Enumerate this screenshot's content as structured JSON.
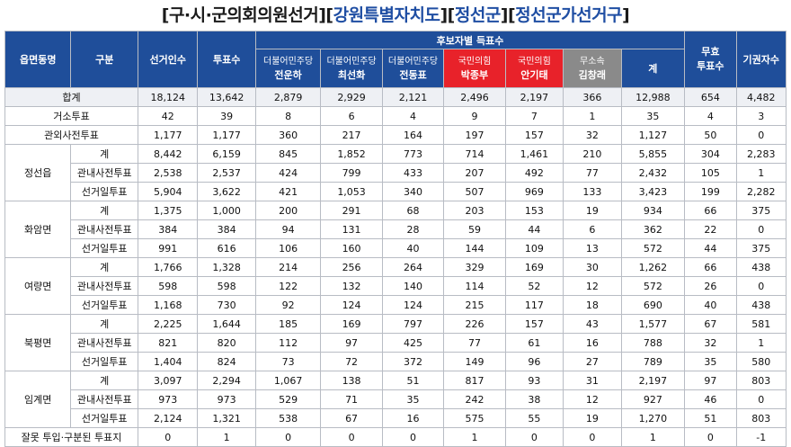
{
  "title": {
    "part1": "구·시·군의회의원선거",
    "part2": "강원특별자치도",
    "part3": "정선군",
    "part4": "정선군가선거구"
  },
  "header": {
    "district": "읍면동명",
    "category": "구분",
    "voters": "선거인수",
    "ballots": "투표수",
    "candidate_group": "후보자별 득표수",
    "total": "계",
    "invalid_line1": "무효",
    "invalid_line2": "투표수",
    "abstain": "기권자수",
    "candidates": [
      {
        "party": "더불어민주당",
        "name": "전운하",
        "color": "#1f4e9a"
      },
      {
        "party": "더불어민주당",
        "name": "최선화",
        "color": "#1f4e9a"
      },
      {
        "party": "더불어민주당",
        "name": "전동표",
        "color": "#1f4e9a"
      },
      {
        "party": "국민의힘",
        "name": "박종부",
        "color": "#e8222a"
      },
      {
        "party": "국민의힘",
        "name": "안기태",
        "color": "#e8222a"
      },
      {
        "party": "무소속",
        "name": "김창래",
        "color": "#8a8a8a"
      }
    ]
  },
  "rows": [
    {
      "district": "",
      "category": "합계",
      "v": [
        "18,124",
        "13,642",
        "2,879",
        "2,929",
        "2,121",
        "2,496",
        "2,197",
        "366",
        "12,988",
        "654",
        "4,482"
      ]
    },
    {
      "district": "",
      "category": "거소투표",
      "v": [
        "42",
        "39",
        "8",
        "6",
        "4",
        "9",
        "7",
        "1",
        "35",
        "4",
        "3"
      ]
    },
    {
      "district": "",
      "category": "관외사전투표",
      "v": [
        "1,177",
        "1,177",
        "360",
        "217",
        "164",
        "197",
        "157",
        "32",
        "1,127",
        "50",
        "0"
      ]
    },
    {
      "district": "정선읍",
      "category": "계",
      "v": [
        "8,442",
        "6,159",
        "845",
        "1,852",
        "773",
        "714",
        "1,461",
        "210",
        "5,855",
        "304",
        "2,283"
      ]
    },
    {
      "district": "",
      "category": "관내사전투표",
      "v": [
        "2,538",
        "2,537",
        "424",
        "799",
        "433",
        "207",
        "492",
        "77",
        "2,432",
        "105",
        "1"
      ]
    },
    {
      "district": "",
      "category": "선거일투표",
      "v": [
        "5,904",
        "3,622",
        "421",
        "1,053",
        "340",
        "507",
        "969",
        "133",
        "3,423",
        "199",
        "2,282"
      ]
    },
    {
      "district": "화암면",
      "category": "계",
      "v": [
        "1,375",
        "1,000",
        "200",
        "291",
        "68",
        "203",
        "153",
        "19",
        "934",
        "66",
        "375"
      ]
    },
    {
      "district": "",
      "category": "관내사전투표",
      "v": [
        "384",
        "384",
        "94",
        "131",
        "28",
        "59",
        "44",
        "6",
        "362",
        "22",
        "0"
      ]
    },
    {
      "district": "",
      "category": "선거일투표",
      "v": [
        "991",
        "616",
        "106",
        "160",
        "40",
        "144",
        "109",
        "13",
        "572",
        "44",
        "375"
      ]
    },
    {
      "district": "여량면",
      "category": "계",
      "v": [
        "1,766",
        "1,328",
        "214",
        "256",
        "264",
        "329",
        "169",
        "30",
        "1,262",
        "66",
        "438"
      ]
    },
    {
      "district": "",
      "category": "관내사전투표",
      "v": [
        "598",
        "598",
        "122",
        "132",
        "140",
        "114",
        "52",
        "12",
        "572",
        "26",
        "0"
      ]
    },
    {
      "district": "",
      "category": "선거일투표",
      "v": [
        "1,168",
        "730",
        "92",
        "124",
        "124",
        "215",
        "117",
        "18",
        "690",
        "40",
        "438"
      ]
    },
    {
      "district": "북평면",
      "category": "계",
      "v": [
        "2,225",
        "1,644",
        "185",
        "169",
        "797",
        "226",
        "157",
        "43",
        "1,577",
        "67",
        "581"
      ]
    },
    {
      "district": "",
      "category": "관내사전투표",
      "v": [
        "821",
        "820",
        "112",
        "97",
        "425",
        "77",
        "61",
        "16",
        "788",
        "32",
        "1"
      ]
    },
    {
      "district": "",
      "category": "선거일투표",
      "v": [
        "1,404",
        "824",
        "73",
        "72",
        "372",
        "149",
        "96",
        "27",
        "789",
        "35",
        "580"
      ]
    },
    {
      "district": "임계면",
      "category": "계",
      "v": [
        "3,097",
        "2,294",
        "1,067",
        "138",
        "51",
        "817",
        "93",
        "31",
        "2,197",
        "97",
        "803"
      ]
    },
    {
      "district": "",
      "category": "관내사전투표",
      "v": [
        "973",
        "973",
        "529",
        "71",
        "35",
        "242",
        "38",
        "12",
        "927",
        "46",
        "0"
      ]
    },
    {
      "district": "",
      "category": "선거일투표",
      "v": [
        "2,124",
        "1,321",
        "538",
        "67",
        "16",
        "575",
        "55",
        "19",
        "1,270",
        "51",
        "803"
      ]
    },
    {
      "district": "",
      "category": "잘못 투입·구분된 투표지",
      "v": [
        "0",
        "1",
        "0",
        "0",
        "0",
        "1",
        "0",
        "0",
        "1",
        "0",
        "-1"
      ]
    }
  ]
}
